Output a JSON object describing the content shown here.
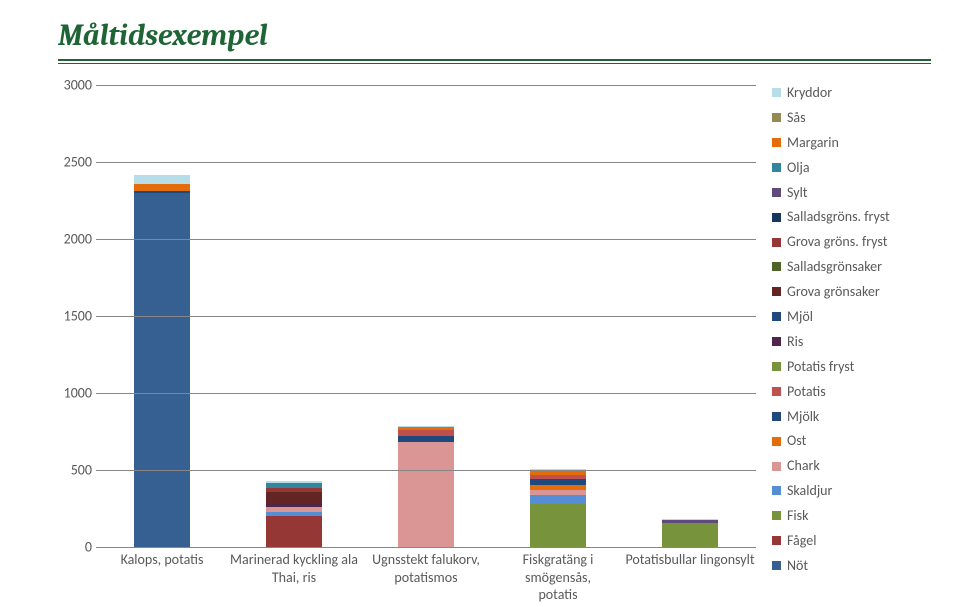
{
  "title": "Måltidsexempel",
  "chart": {
    "type": "stacked_bar",
    "ylim": [
      0,
      3000
    ],
    "ytick_step": 500,
    "yticks": [
      0,
      500,
      1000,
      1500,
      2000,
      2500,
      3000
    ],
    "tick_fontsize": 14,
    "axis_color": "#868686",
    "grid_color": "#868686",
    "background_color": "#ffffff",
    "label_color": "#595959",
    "bar_width_pct": 8.5,
    "categories": [
      {
        "key": "kalops",
        "label": "Kalops, potatis"
      },
      {
        "key": "kyckling",
        "label": "Marinerad kyckling ala\nThai, ris"
      },
      {
        "key": "falukorv",
        "label": "Ugnsstekt falukorv,\npotatismos"
      },
      {
        "key": "fisk",
        "label": "Fiskgratäng i smögensås,\npotatis"
      },
      {
        "key": "potatisbullar",
        "label": "Potatisbullar lingonsylt"
      }
    ],
    "series_order_bottom_to_top": [
      "not",
      "fagel",
      "fisk",
      "skaldjur",
      "chark",
      "ost",
      "mjolk",
      "potatis",
      "potatis_fryst",
      "ris",
      "mjol",
      "grova_gronsaker",
      "salladsgronsaker",
      "grova_grons_fryst",
      "salladsgrons_fryst",
      "sylt",
      "olja",
      "margarin",
      "sas",
      "kryddor"
    ],
    "series": {
      "kryddor": {
        "label": "Kryddor",
        "color": "#b7dee8"
      },
      "sas": {
        "label": "Sås",
        "color": "#948a54"
      },
      "margarin": {
        "label": "Margarin",
        "color": "#e46c0a"
      },
      "olja": {
        "label": "Olja",
        "color": "#31859c"
      },
      "sylt": {
        "label": "Sylt",
        "color": "#604a7b"
      },
      "salladsgrons_fryst": {
        "label": "Salladsgröns. fryst",
        "color": "#17375e"
      },
      "grova_grons_fryst": {
        "label": "Grova gröns. fryst",
        "color": "#953735"
      },
      "salladsgronsaker": {
        "label": "Salladsgrönsaker",
        "color": "#4f6228"
      },
      "grova_gronsaker": {
        "label": "Grova grönsaker",
        "color": "#632523"
      },
      "mjol": {
        "label": "Mjöl",
        "color": "#1f497d"
      },
      "ris": {
        "label": "Ris",
        "color": "#4f254a"
      },
      "potatis_fryst": {
        "label": "Potatis fryst",
        "color": "#77933c"
      },
      "potatis": {
        "label": "Potatis",
        "color": "#c0504d"
      },
      "mjolk": {
        "label": "Mjölk",
        "color": "#1f497d"
      },
      "ost": {
        "label": "Ost",
        "color": "#e46c0a"
      },
      "chark": {
        "label": "Chark",
        "color": "#d99694"
      },
      "skaldjur": {
        "label": "Skaldjur",
        "color": "#558ed5"
      },
      "fisk": {
        "label": "Fisk",
        "color": "#77933c"
      },
      "fagel": {
        "label": "Fågel",
        "color": "#953735"
      },
      "not": {
        "label": "Nöt",
        "color": "#376092"
      }
    },
    "data": {
      "kalops": {
        "not": 2300,
        "margarin": 40,
        "kryddor": 60,
        "mjol": 15
      },
      "kyckling": {
        "fagel": 200,
        "skaldjur": 30,
        "grova_gronsaker": 80,
        "grova_grons_fryst": 25,
        "chark": 30,
        "olja": 30,
        "ris": 20,
        "kryddor": 15
      },
      "falukorv": {
        "chark": 680,
        "potatis": 40,
        "mjolk": 40,
        "margarin": 20,
        "kryddor": 5
      },
      "fisk": {
        "fisk": 280,
        "ost": 30,
        "chark": 30,
        "skaldjur": 60,
        "potatis": 30,
        "mjolk": 40,
        "margarin": 30,
        "kryddor": 10
      },
      "potatisbullar": {
        "potatis_fryst": 155,
        "sylt": 20,
        "kryddor": 5
      }
    },
    "legend": {
      "position": "right",
      "order": [
        "kryddor",
        "sas",
        "margarin",
        "olja",
        "sylt",
        "salladsgrons_fryst",
        "grova_grons_fryst",
        "salladsgronsaker",
        "grova_gronsaker",
        "mjol",
        "ris",
        "potatis_fryst",
        "potatis",
        "mjolk",
        "ost",
        "chark",
        "skaldjur",
        "fisk",
        "fagel",
        "not"
      ]
    }
  }
}
